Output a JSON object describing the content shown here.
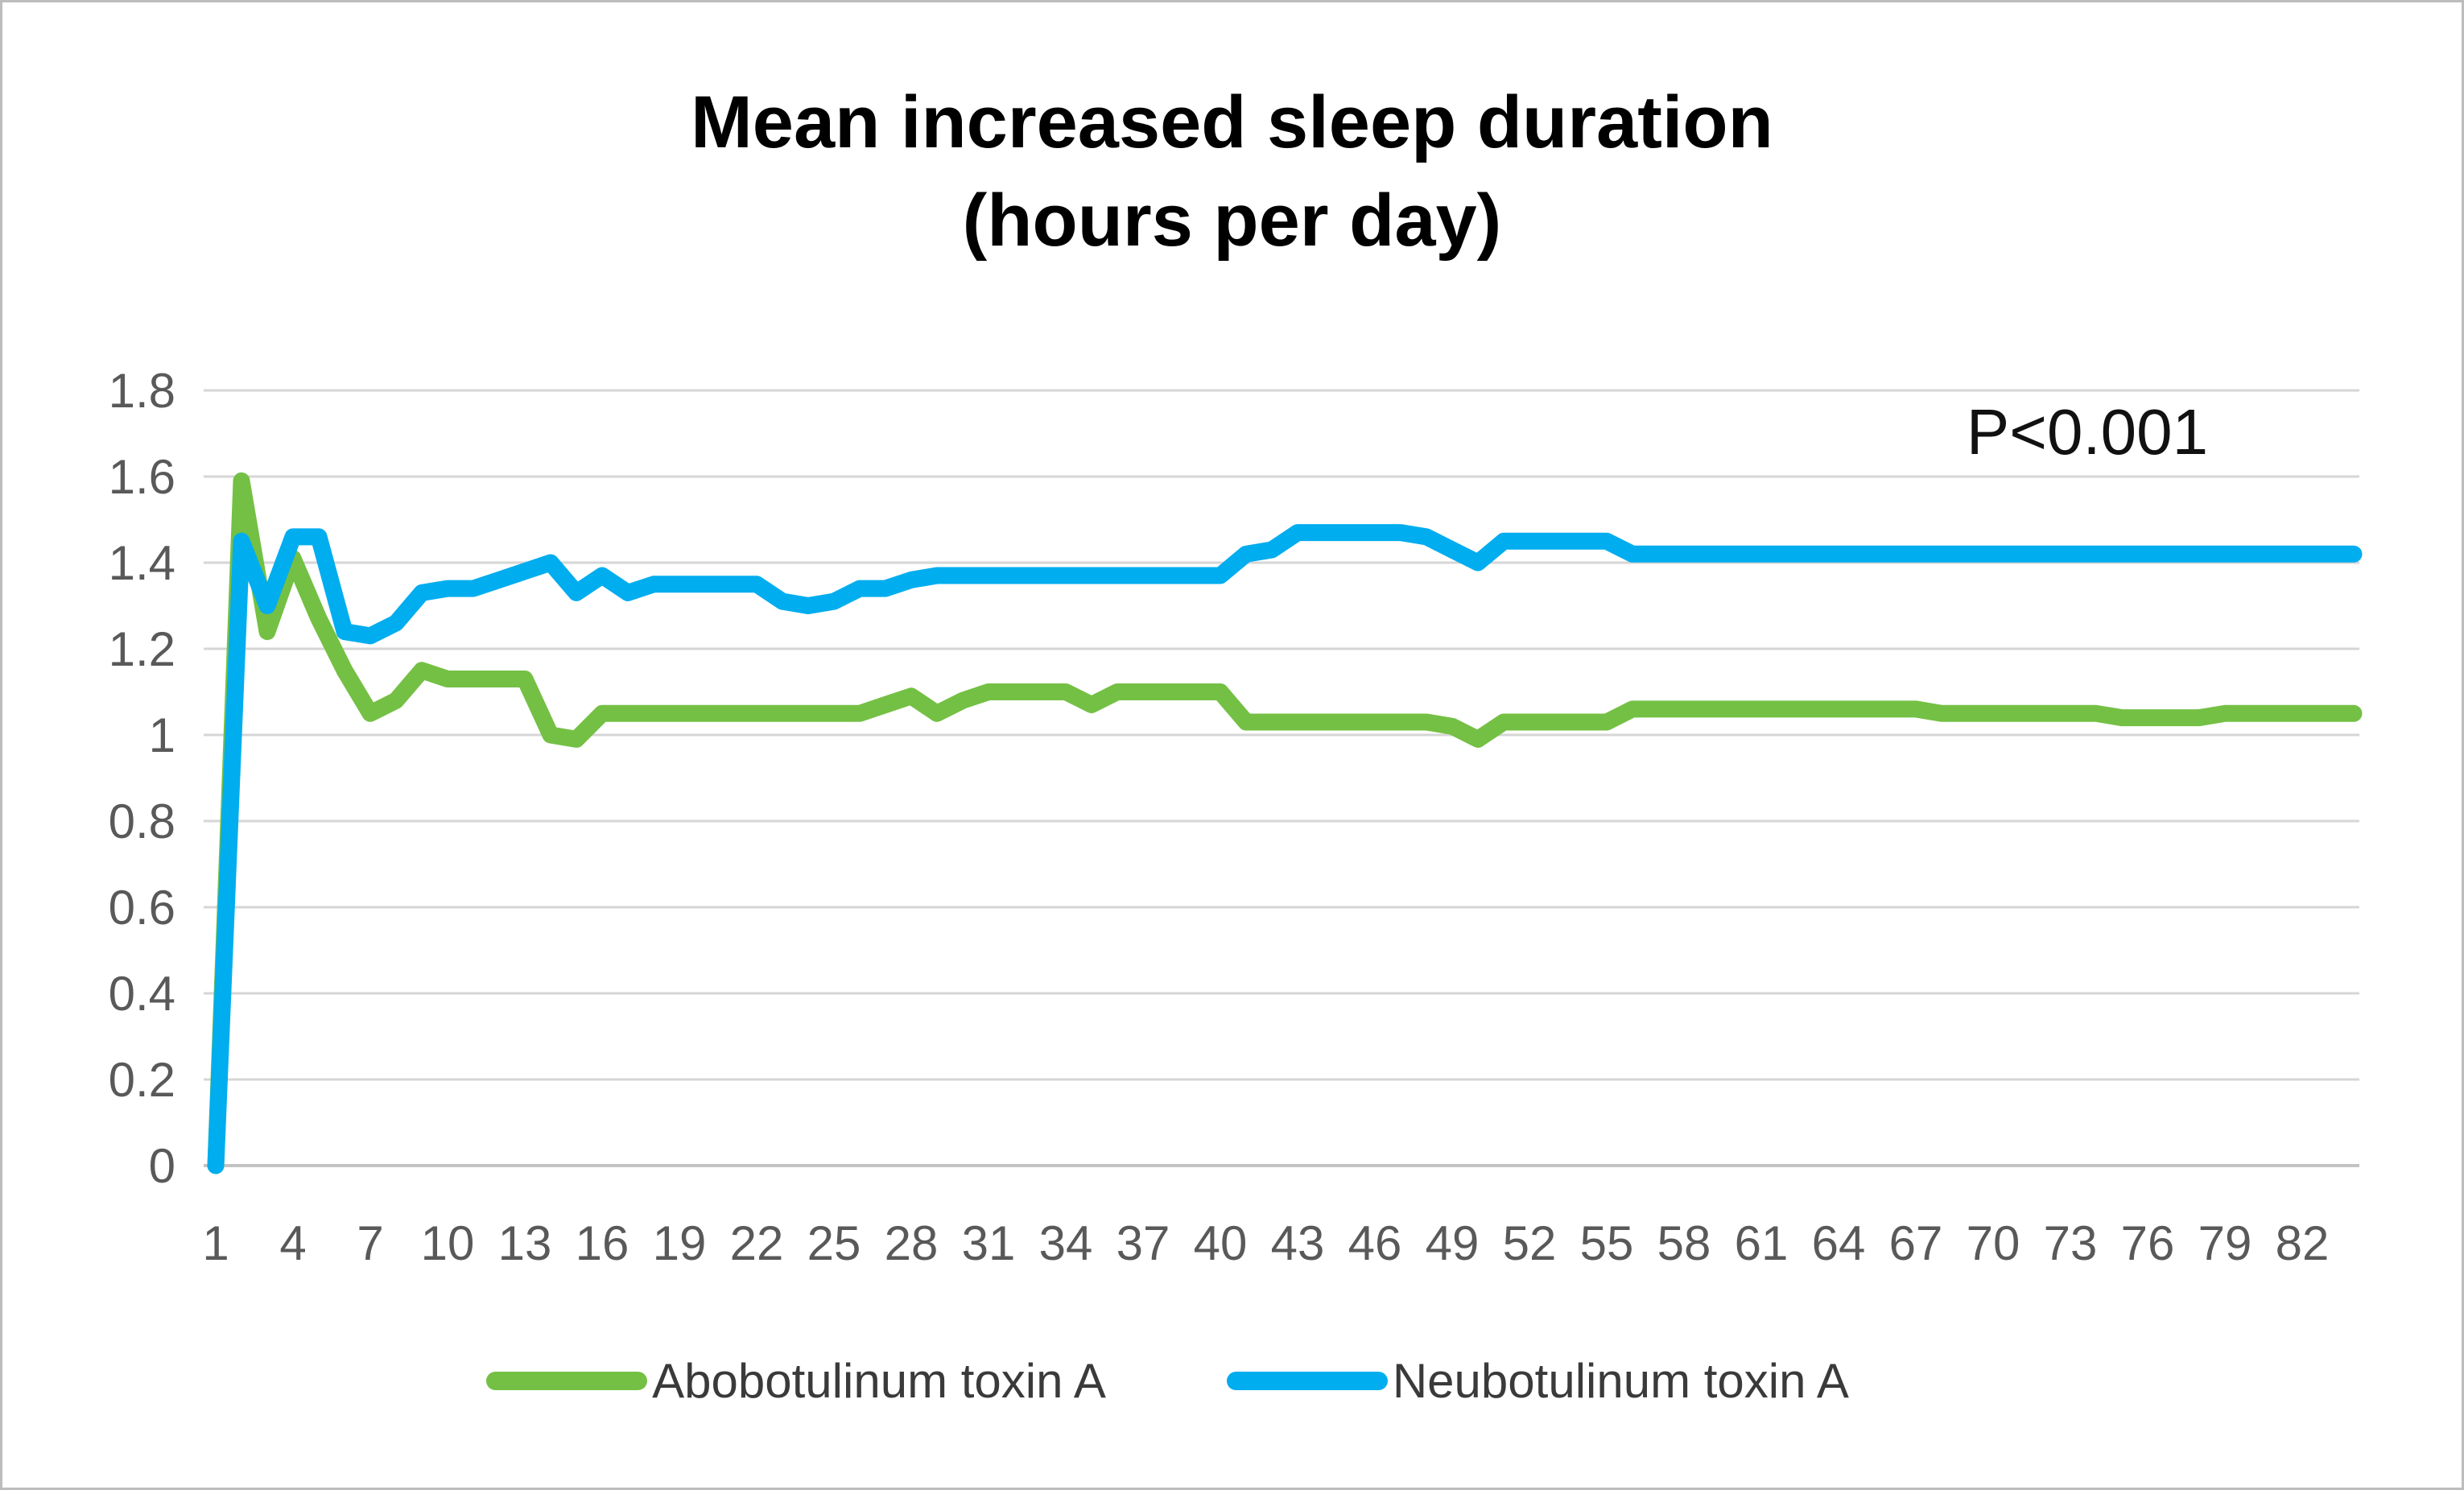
{
  "title": {
    "line1": "Mean increased sleep duration",
    "line2": "(hours per day)"
  },
  "annotation": {
    "text": "P<0.001"
  },
  "legend": [
    {
      "label": "Abobotulinum toxin A",
      "color": "#74C044"
    },
    {
      "label": "Neubotulinum toxin A",
      "color": "#00ADEF"
    }
  ],
  "colors": {
    "green_series": "#74C044",
    "blue_series": "#00ADEF",
    "gridline": "#D6D6D6",
    "axis_line": "#C3C3C3",
    "tick_label": "#595959",
    "title_text": "#000000",
    "figure_border": "#BDBDBD"
  },
  "chart_data": {
    "type": "line",
    "title": "Mean increased sleep duration (hours per day)",
    "xlabel": "",
    "ylabel": "",
    "ylim": [
      0,
      1.8
    ],
    "grid": true,
    "legend_position": "bottom",
    "annotation": {
      "text": "P<0.001",
      "x": 73.5,
      "y": 1.7
    },
    "x": [
      1,
      2,
      3,
      4,
      5,
      6,
      7,
      8,
      9,
      10,
      11,
      12,
      13,
      14,
      15,
      16,
      17,
      18,
      19,
      20,
      21,
      22,
      23,
      24,
      25,
      26,
      27,
      28,
      29,
      30,
      31,
      32,
      33,
      34,
      35,
      36,
      37,
      38,
      39,
      40,
      41,
      42,
      43,
      44,
      45,
      46,
      47,
      48,
      49,
      50,
      51,
      52,
      53,
      54,
      55,
      56,
      57,
      58,
      59,
      60,
      61,
      62,
      63,
      64,
      65,
      66,
      67,
      68,
      69,
      70,
      71,
      72,
      73,
      74,
      75,
      76,
      77,
      78,
      79,
      80,
      81,
      82,
      83,
      84
    ],
    "x_tick_labels": [
      "1",
      "4",
      "7",
      "10",
      "13",
      "16",
      "19",
      "22",
      "25",
      "28",
      "31",
      "34",
      "37",
      "40",
      "43",
      "46",
      "49",
      "52",
      "55",
      "58",
      "61",
      "64",
      "67",
      "70",
      "73",
      "76",
      "79",
      "82"
    ],
    "y_ticks": [
      {
        "value": 0,
        "label": "0"
      },
      {
        "value": 0.2,
        "label": "0.2"
      },
      {
        "value": 0.4,
        "label": "0.4"
      },
      {
        "value": 0.6,
        "label": "0.6"
      },
      {
        "value": 0.8,
        "label": "0.8"
      },
      {
        "value": 1,
        "label": "1"
      },
      {
        "value": 1.2,
        "label": "1.2"
      },
      {
        "value": 1.4,
        "label": "1.4"
      },
      {
        "value": 1.6,
        "label": "1.6"
      },
      {
        "value": 1.8,
        "label": "1.8"
      }
    ],
    "series": [
      {
        "name": "Abobotulinum toxin A",
        "color": "#74C044",
        "values": [
          0,
          1.59,
          1.24,
          1.41,
          1.27,
          1.15,
          1.05,
          1.08,
          1.15,
          1.13,
          1.13,
          1.13,
          1.13,
          1.0,
          0.99,
          1.05,
          1.05,
          1.05,
          1.05,
          1.05,
          1.05,
          1.05,
          1.05,
          1.05,
          1.05,
          1.05,
          1.07,
          1.09,
          1.05,
          1.08,
          1.1,
          1.1,
          1.1,
          1.1,
          1.07,
          1.1,
          1.1,
          1.1,
          1.1,
          1.1,
          1.03,
          1.03,
          1.03,
          1.03,
          1.03,
          1.03,
          1.03,
          1.03,
          1.02,
          0.99,
          1.03,
          1.03,
          1.03,
          1.03,
          1.03,
          1.06,
          1.06,
          1.06,
          1.06,
          1.06,
          1.06,
          1.06,
          1.06,
          1.06,
          1.06,
          1.06,
          1.06,
          1.05,
          1.05,
          1.05,
          1.05,
          1.05,
          1.05,
          1.05,
          1.04,
          1.04,
          1.04,
          1.04,
          1.05,
          1.05,
          1.05,
          1.05,
          1.05,
          1.05
        ]
      },
      {
        "name": "Neubotulinum toxin A",
        "color": "#00ADEF",
        "values": [
          0,
          1.45,
          1.3,
          1.46,
          1.46,
          1.24,
          1.23,
          1.26,
          1.33,
          1.34,
          1.34,
          1.36,
          1.38,
          1.4,
          1.33,
          1.37,
          1.33,
          1.35,
          1.35,
          1.35,
          1.35,
          1.35,
          1.31,
          1.3,
          1.31,
          1.34,
          1.34,
          1.36,
          1.37,
          1.37,
          1.37,
          1.37,
          1.37,
          1.37,
          1.37,
          1.37,
          1.37,
          1.37,
          1.37,
          1.37,
          1.42,
          1.43,
          1.47,
          1.47,
          1.47,
          1.47,
          1.47,
          1.46,
          1.43,
          1.4,
          1.45,
          1.45,
          1.45,
          1.45,
          1.45,
          1.42,
          1.42,
          1.42,
          1.42,
          1.42,
          1.42,
          1.42,
          1.42,
          1.42,
          1.42,
          1.42,
          1.42,
          1.42,
          1.42,
          1.42,
          1.42,
          1.42,
          1.42,
          1.42,
          1.42,
          1.42,
          1.42,
          1.42,
          1.42,
          1.42,
          1.42,
          1.42,
          1.42,
          1.42
        ]
      }
    ]
  }
}
